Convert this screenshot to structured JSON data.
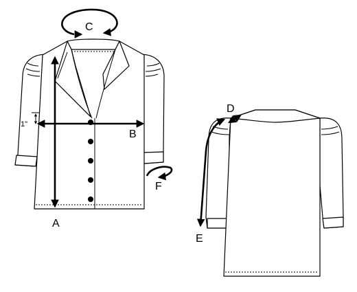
{
  "labels": {
    "A": "A",
    "B": "B",
    "C": "C",
    "D": "D",
    "E": "E",
    "F": "F",
    "offset": "1\""
  },
  "colors": {
    "line": "#000000",
    "background": "#ffffff"
  },
  "views": [
    "front",
    "back"
  ],
  "buttons_count": 5
}
